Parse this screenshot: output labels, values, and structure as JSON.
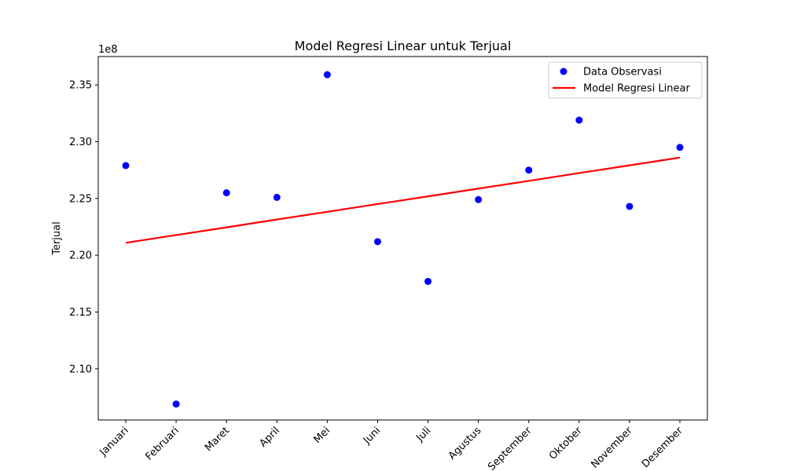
{
  "chart_data": {
    "type": "scatter",
    "title": "Model Regresi Linear untuk Terjual",
    "xlabel": "",
    "ylabel": "Terjual",
    "y_offset_text": "1e8",
    "y_multiplier": 100000000,
    "categories": [
      "Januari",
      "Februari",
      "Maret",
      "April",
      "Mei",
      "Juni",
      "Juli",
      "Agustus",
      "September",
      "Oktober",
      "November",
      "Desember"
    ],
    "ylim": [
      2.055,
      2.375
    ],
    "yticks": [
      2.1,
      2.15,
      2.2,
      2.25,
      2.3,
      2.35
    ],
    "ytick_labels": [
      "2.10",
      "2.15",
      "2.20",
      "2.25",
      "2.30",
      "2.35"
    ],
    "series": [
      {
        "name": "Data Observasi",
        "kind": "scatter",
        "color": "#0000ff",
        "values": [
          2.279,
          2.069,
          2.255,
          2.251,
          2.359,
          2.212,
          2.177,
          2.249,
          2.275,
          2.319,
          2.243,
          2.295
        ]
      },
      {
        "name": "Model Regresi Linear",
        "kind": "line",
        "color": "#ff0000",
        "values": [
          2.211,
          2.2178,
          2.2246,
          2.2315,
          2.2383,
          2.2451,
          2.2519,
          2.2587,
          2.2655,
          2.2724,
          2.2792,
          2.286
        ]
      }
    ],
    "legend_position": "top-right",
    "grid": false
  }
}
